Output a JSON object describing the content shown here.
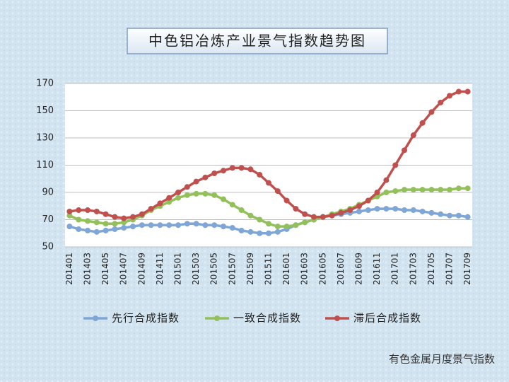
{
  "chart_data": {
    "type": "line",
    "title": "中色铝冶炼产业景气指数趋势图",
    "watermark": "有色金属月度景气指数",
    "categories": [
      "201401",
      null,
      "201403",
      null,
      "201405",
      null,
      "201407",
      null,
      "201409",
      null,
      "201411",
      null,
      "201501",
      null,
      "201503",
      null,
      "201505",
      null,
      "201507",
      null,
      "201509",
      null,
      "201511",
      null,
      "201601",
      null,
      "201603",
      null,
      "201605",
      null,
      "201607",
      null,
      "201609",
      null,
      "201611",
      null,
      "201701",
      null,
      "201703",
      null,
      "201705",
      null,
      "201707",
      null,
      "201709"
    ],
    "series": [
      {
        "name": "先行合成指数",
        "color": "#7ea6d6",
        "values": [
          65,
          63,
          62,
          61,
          62,
          63,
          64,
          65,
          66,
          66,
          66,
          66,
          66,
          67,
          67,
          66,
          66,
          65,
          64,
          62,
          61,
          60,
          60,
          61,
          63,
          66,
          68,
          70,
          72,
          73,
          74,
          75,
          76,
          77,
          78,
          78,
          78,
          77,
          77,
          76,
          75,
          74,
          73,
          73,
          72
        ]
      },
      {
        "name": "一致合成指数",
        "color": "#92c15a",
        "values": [
          73,
          70,
          69,
          68,
          67,
          67,
          68,
          70,
          73,
          77,
          80,
          83,
          86,
          88,
          89,
          89,
          88,
          85,
          81,
          77,
          73,
          70,
          67,
          65,
          65,
          66,
          68,
          70,
          72,
          74,
          76,
          78,
          81,
          84,
          87,
          90,
          91,
          92,
          92,
          92,
          92,
          92,
          92,
          93,
          93
        ]
      },
      {
        "name": "滞后合成指数",
        "color": "#c0504d",
        "values": [
          76,
          77,
          77,
          76,
          74,
          72,
          71,
          72,
          74,
          78,
          82,
          86,
          90,
          94,
          98,
          101,
          104,
          106,
          108,
          108,
          107,
          103,
          97,
          91,
          84,
          78,
          74,
          72,
          72,
          73,
          75,
          77,
          80,
          84,
          90,
          99,
          110,
          121,
          132,
          141,
          149,
          156,
          161,
          164,
          164
        ]
      }
    ],
    "ylim": [
      50,
      170
    ],
    "yticks": [
      50,
      70,
      90,
      110,
      130,
      150,
      170
    ],
    "grid": true,
    "legend": "bottom"
  }
}
